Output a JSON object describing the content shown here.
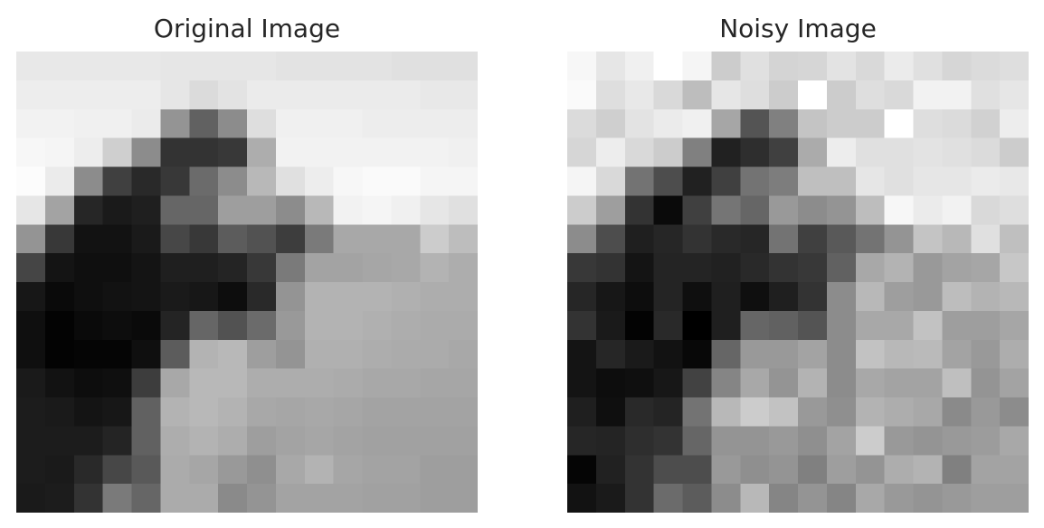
{
  "chart_data": [
    {
      "type": "heatmap",
      "title": "Original Image",
      "colormap": "gray",
      "rows": 16,
      "cols": 16,
      "vmin": 0,
      "vmax": 1,
      "values": [
        [
          0.91,
          0.91,
          0.91,
          0.91,
          0.91,
          0.9,
          0.9,
          0.9,
          0.9,
          0.89,
          0.89,
          0.89,
          0.89,
          0.88,
          0.88,
          0.88
        ],
        [
          0.93,
          0.93,
          0.93,
          0.93,
          0.93,
          0.9,
          0.86,
          0.89,
          0.92,
          0.92,
          0.92,
          0.92,
          0.92,
          0.92,
          0.91,
          0.91
        ],
        [
          0.95,
          0.95,
          0.94,
          0.94,
          0.92,
          0.58,
          0.38,
          0.55,
          0.87,
          0.94,
          0.94,
          0.94,
          0.93,
          0.93,
          0.93,
          0.93
        ],
        [
          0.97,
          0.96,
          0.93,
          0.81,
          0.55,
          0.2,
          0.2,
          0.22,
          0.68,
          0.95,
          0.95,
          0.95,
          0.95,
          0.95,
          0.95,
          0.94
        ],
        [
          0.99,
          0.92,
          0.55,
          0.25,
          0.16,
          0.22,
          0.42,
          0.55,
          0.72,
          0.88,
          0.93,
          0.97,
          0.98,
          0.98,
          0.96,
          0.96
        ],
        [
          0.9,
          0.64,
          0.15,
          0.1,
          0.12,
          0.4,
          0.4,
          0.62,
          0.62,
          0.55,
          0.72,
          0.95,
          0.96,
          0.94,
          0.9,
          0.88
        ],
        [
          0.58,
          0.22,
          0.07,
          0.07,
          0.1,
          0.28,
          0.22,
          0.36,
          0.32,
          0.24,
          0.48,
          0.66,
          0.66,
          0.66,
          0.8,
          0.74
        ],
        [
          0.27,
          0.08,
          0.06,
          0.06,
          0.08,
          0.12,
          0.12,
          0.14,
          0.22,
          0.48,
          0.64,
          0.64,
          0.65,
          0.66,
          0.7,
          0.68
        ],
        [
          0.09,
          0.04,
          0.06,
          0.07,
          0.08,
          0.1,
          0.09,
          0.05,
          0.16,
          0.58,
          0.7,
          0.7,
          0.7,
          0.69,
          0.68,
          0.68
        ],
        [
          0.06,
          0.01,
          0.04,
          0.05,
          0.04,
          0.14,
          0.4,
          0.32,
          0.42,
          0.6,
          0.7,
          0.7,
          0.69,
          0.68,
          0.67,
          0.67
        ],
        [
          0.06,
          0.01,
          0.02,
          0.02,
          0.06,
          0.36,
          0.7,
          0.72,
          0.62,
          0.58,
          0.69,
          0.69,
          0.68,
          0.67,
          0.67,
          0.66
        ],
        [
          0.1,
          0.07,
          0.05,
          0.06,
          0.24,
          0.66,
          0.72,
          0.72,
          0.68,
          0.68,
          0.68,
          0.67,
          0.66,
          0.66,
          0.65,
          0.65
        ],
        [
          0.11,
          0.1,
          0.08,
          0.09,
          0.38,
          0.7,
          0.72,
          0.7,
          0.66,
          0.65,
          0.66,
          0.65,
          0.64,
          0.64,
          0.64,
          0.64
        ],
        [
          0.11,
          0.11,
          0.11,
          0.14,
          0.38,
          0.68,
          0.7,
          0.68,
          0.62,
          0.64,
          0.65,
          0.64,
          0.63,
          0.63,
          0.63,
          0.63
        ],
        [
          0.11,
          0.1,
          0.16,
          0.28,
          0.35,
          0.67,
          0.65,
          0.6,
          0.56,
          0.66,
          0.7,
          0.65,
          0.64,
          0.64,
          0.62,
          0.62
        ],
        [
          0.1,
          0.11,
          0.2,
          0.48,
          0.4,
          0.67,
          0.67,
          0.54,
          0.58,
          0.64,
          0.64,
          0.64,
          0.63,
          0.63,
          0.62,
          0.62
        ]
      ]
    },
    {
      "type": "heatmap",
      "title": "Noisy Image",
      "colormap": "gray",
      "rows": 16,
      "cols": 16,
      "vmin": 0,
      "vmax": 1,
      "values": [
        [
          0.97,
          0.9,
          0.94,
          1.0,
          0.96,
          0.8,
          0.88,
          0.83,
          0.84,
          0.89,
          0.85,
          0.92,
          0.88,
          0.84,
          0.86,
          0.87
        ],
        [
          0.98,
          0.87,
          0.91,
          0.85,
          0.74,
          0.9,
          0.87,
          0.8,
          1.0,
          0.8,
          0.87,
          0.85,
          0.95,
          0.95,
          0.88,
          0.9
        ],
        [
          0.86,
          0.81,
          0.89,
          0.92,
          0.94,
          0.65,
          0.33,
          0.5,
          0.77,
          0.8,
          0.8,
          1.0,
          0.87,
          0.86,
          0.82,
          0.93
        ],
        [
          0.84,
          0.93,
          0.85,
          0.8,
          0.5,
          0.13,
          0.18,
          0.25,
          0.67,
          0.93,
          0.88,
          0.88,
          0.89,
          0.88,
          0.86,
          0.8
        ],
        [
          0.96,
          0.85,
          0.45,
          0.3,
          0.13,
          0.25,
          0.45,
          0.49,
          0.75,
          0.75,
          0.9,
          0.88,
          0.9,
          0.9,
          0.92,
          0.91
        ],
        [
          0.8,
          0.62,
          0.2,
          0.04,
          0.25,
          0.46,
          0.4,
          0.6,
          0.55,
          0.58,
          0.74,
          0.97,
          0.92,
          0.95,
          0.85,
          0.87
        ],
        [
          0.55,
          0.3,
          0.12,
          0.15,
          0.2,
          0.16,
          0.15,
          0.45,
          0.25,
          0.35,
          0.45,
          0.58,
          0.77,
          0.72,
          0.88,
          0.75
        ],
        [
          0.22,
          0.2,
          0.08,
          0.14,
          0.14,
          0.13,
          0.16,
          0.2,
          0.22,
          0.38,
          0.66,
          0.7,
          0.6,
          0.64,
          0.65,
          0.78
        ],
        [
          0.15,
          0.09,
          0.05,
          0.14,
          0.06,
          0.12,
          0.06,
          0.12,
          0.2,
          0.55,
          0.72,
          0.62,
          0.6,
          0.74,
          0.7,
          0.72
        ],
        [
          0.2,
          0.1,
          0.01,
          0.16,
          0.0,
          0.12,
          0.4,
          0.38,
          0.33,
          0.55,
          0.66,
          0.66,
          0.76,
          0.62,
          0.62,
          0.65
        ],
        [
          0.08,
          0.15,
          0.1,
          0.07,
          0.03,
          0.4,
          0.6,
          0.6,
          0.64,
          0.55,
          0.76,
          0.72,
          0.73,
          0.64,
          0.6,
          0.68
        ],
        [
          0.08,
          0.05,
          0.06,
          0.09,
          0.26,
          0.52,
          0.66,
          0.58,
          0.7,
          0.55,
          0.66,
          0.64,
          0.64,
          0.75,
          0.58,
          0.64
        ],
        [
          0.12,
          0.06,
          0.16,
          0.14,
          0.45,
          0.72,
          0.8,
          0.76,
          0.6,
          0.56,
          0.7,
          0.68,
          0.66,
          0.54,
          0.6,
          0.55
        ],
        [
          0.15,
          0.14,
          0.18,
          0.2,
          0.4,
          0.58,
          0.58,
          0.6,
          0.56,
          0.64,
          0.8,
          0.6,
          0.58,
          0.6,
          0.61,
          0.66
        ],
        [
          0.02,
          0.13,
          0.2,
          0.3,
          0.3,
          0.6,
          0.56,
          0.58,
          0.5,
          0.62,
          0.58,
          0.68,
          0.7,
          0.5,
          0.64,
          0.64
        ],
        [
          0.07,
          0.1,
          0.2,
          0.42,
          0.36,
          0.55,
          0.72,
          0.52,
          0.58,
          0.52,
          0.66,
          0.6,
          0.58,
          0.6,
          0.62,
          0.62
        ]
      ]
    }
  ]
}
